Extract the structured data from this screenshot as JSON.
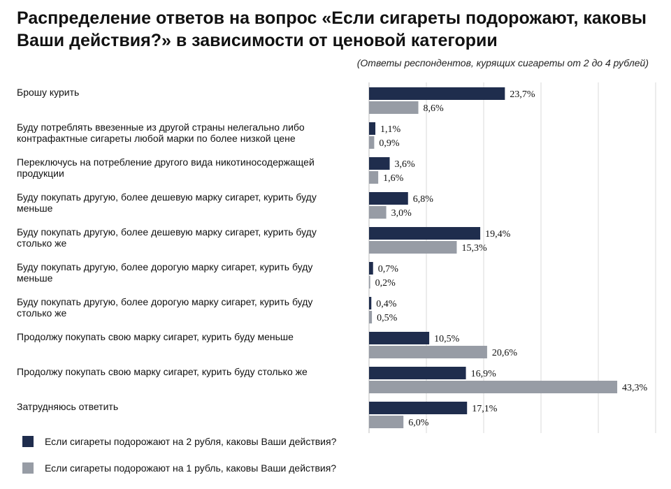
{
  "chart_data": {
    "type": "bar",
    "orientation": "horizontal",
    "title": "Распределение ответов на вопрос «Если сигареты подорожают, каковы Ваши действия?» в зависимости от ценовой категории",
    "subtitle": "(Ответы респондентов, курящих сигареты от 2 до 4 рублей)",
    "xlim": [
      0,
      50
    ],
    "grid": true,
    "legend_position": "bottom-left",
    "categories": [
      "Брошу курить",
      "Буду потреблять ввезенные из другой страны нелегально либо контрафактные сигареты любой марки  по более низкой цене",
      "Переключусь на потребление другого вида никотиносодержащей продукции",
      "Буду покупать другую, более дешевую марку сигарет, курить буду меньше",
      "Буду покупать другую, более дешевую марку сигарет, курить буду столько же",
      "Буду покупать другую, более дорогую марку сигарет, курить буду меньше",
      "Буду покупать другую, более дорогую марку сигарет, курить буду столько же",
      "Продолжу покупать свою марку сигарет, курить буду меньше",
      "Продолжу покупать свою марку сигарет, курить буду столько же",
      "Затрудняюсь ответить"
    ],
    "series": [
      {
        "name": "Если сигареты подорожают на 2 рубля, каковы Ваши действия?",
        "color": "#1f2d4d",
        "values": [
          23.7,
          1.1,
          3.6,
          6.8,
          19.4,
          0.7,
          0.4,
          10.5,
          16.9,
          17.1
        ],
        "labels": [
          "23,7%",
          "1,1%",
          "3,6%",
          "6,8%",
          "19,4%",
          "0,7%",
          "0,4%",
          "10,5%",
          "16,9%",
          "17,1%"
        ]
      },
      {
        "name": "Если сигареты подорожают на 1 рубль, каковы Ваши действия?",
        "color": "#979ca5",
        "values": [
          8.6,
          0.9,
          1.6,
          3.0,
          15.3,
          0.2,
          0.5,
          20.6,
          43.3,
          6.0
        ],
        "labels": [
          "8,6%",
          "0,9%",
          "1,6%",
          "3,0%",
          "15,3%",
          "0,2%",
          "0,5%",
          "20,6%",
          "43,3%",
          "6,0%"
        ]
      }
    ]
  }
}
